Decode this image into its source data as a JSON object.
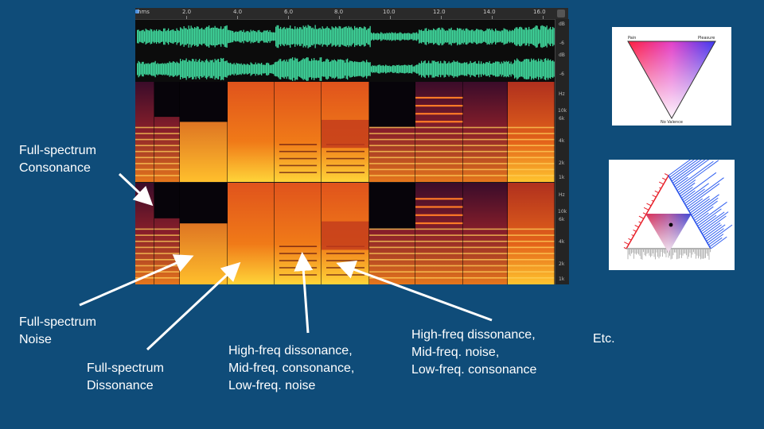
{
  "editor": {
    "ruler_labels": [
      "hms",
      "2.0",
      "4.0",
      "6.0",
      "8.0",
      "10.0",
      "12.0",
      "14.0",
      "16.0"
    ],
    "wave_scale": [
      "dB",
      "-6",
      "dB",
      "-6"
    ],
    "spec_scale": [
      "Hz",
      "10k",
      "6k",
      "4k",
      "2k",
      "1k"
    ],
    "waveform_color": "#3fd59a"
  },
  "annotations": {
    "consonance": [
      "Full-spectrum",
      "Consonance"
    ],
    "noise": [
      "Full-spectrum",
      "Noise"
    ],
    "dissonance": [
      "Full-spectrum",
      "Dissonance"
    ],
    "mix1": [
      "High-freq dissonance,",
      "Mid-freq. consonance,",
      "Low-freq. noise"
    ],
    "mix2": [
      "High-freq dissonance,",
      "Mid-freq. noise,",
      "Low-freq. consonance"
    ],
    "etc": "Etc."
  },
  "valence_triangle": {
    "pain": "Pain",
    "pleasure": "Pleasure",
    "no_valence": "No Valence",
    "pain_color": "#ff0033",
    "pleasure_color": "#2233ff"
  }
}
